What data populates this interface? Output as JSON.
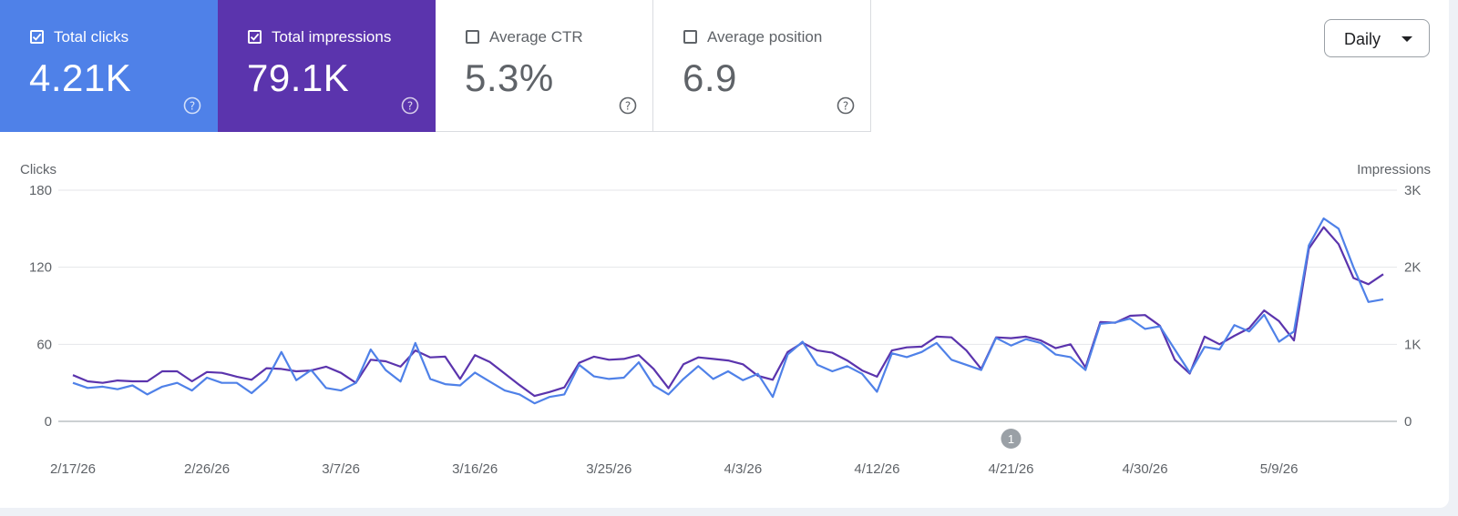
{
  "metrics": [
    {
      "label": "Total clicks",
      "value": "4.21K",
      "checked": true,
      "color": "#4f81e8"
    },
    {
      "label": "Total impressions",
      "value": "79.1K",
      "checked": true,
      "color": "#5b34ad"
    },
    {
      "label": "Average CTR",
      "value": "5.3%",
      "checked": false,
      "color": "#ffffff"
    },
    {
      "label": "Average position",
      "value": "6.9",
      "checked": false,
      "color": "#ffffff"
    }
  ],
  "range_selector": {
    "label": "Daily"
  },
  "chart_data": {
    "type": "line",
    "ylabel_left": "Clicks",
    "ylabel_right": "Impressions",
    "yticks_left": [
      "180",
      "120",
      "60",
      "0"
    ],
    "yticks_right": [
      "3K",
      "2K",
      "1K",
      "0"
    ],
    "ylim_left": [
      0,
      180
    ],
    "ylim_right": [
      0,
      3000
    ],
    "grid": true,
    "start_date": "2/17/26",
    "x_tick_labels": [
      "2/17/26",
      "2/26/26",
      "3/7/26",
      "3/16/26",
      "3/25/26",
      "4/3/26",
      "4/12/26",
      "4/21/26",
      "4/30/26",
      "5/9/26"
    ],
    "annotation": {
      "label": "1",
      "date": "4/21/26"
    },
    "series": [
      {
        "name": "Clicks",
        "axis": "left",
        "color": "#4f81e8",
        "values": [
          30,
          26,
          27,
          25,
          28,
          21,
          27,
          30,
          24,
          34,
          30,
          30,
          22,
          32,
          54,
          32,
          40,
          26,
          24,
          30,
          56,
          40,
          31,
          61,
          33,
          29,
          28,
          38,
          31,
          24,
          21,
          14,
          19,
          21,
          44,
          35,
          33,
          34,
          46,
          28,
          21,
          33,
          43,
          33,
          39,
          32,
          37,
          19,
          52,
          62,
          44,
          39,
          43,
          37,
          23,
          53,
          50,
          54,
          61,
          48,
          44,
          40,
          65,
          59,
          64,
          61,
          52,
          50,
          40,
          76,
          77,
          80,
          72,
          74,
          56,
          38,
          58,
          56,
          75,
          70,
          83,
          62,
          70,
          137,
          158,
          150,
          120,
          93,
          95
        ]
      },
      {
        "name": "Impressions",
        "axis": "right",
        "color": "#5b34ad",
        "values": [
          600,
          520,
          500,
          530,
          520,
          520,
          650,
          650,
          520,
          640,
          630,
          580,
          540,
          690,
          680,
          650,
          660,
          710,
          630,
          500,
          800,
          780,
          710,
          920,
          830,
          840,
          550,
          860,
          770,
          620,
          470,
          330,
          380,
          440,
          760,
          840,
          800,
          810,
          860,
          680,
          430,
          740,
          830,
          810,
          790,
          740,
          590,
          540,
          900,
          1020,
          920,
          890,
          790,
          660,
          580,
          920,
          960,
          970,
          1100,
          1090,
          920,
          680,
          1090,
          1080,
          1100,
          1050,
          950,
          1000,
          700,
          1290,
          1280,
          1370,
          1380,
          1240,
          800,
          620,
          1100,
          1000,
          1110,
          1210,
          1440,
          1300,
          1050,
          2240,
          2520,
          2300,
          1860,
          1780,
          1910
        ]
      }
    ]
  }
}
